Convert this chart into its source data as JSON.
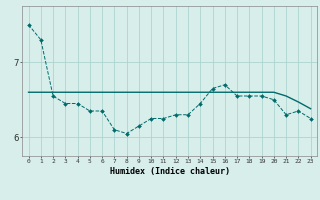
{
  "x": [
    0,
    1,
    2,
    3,
    4,
    5,
    6,
    7,
    8,
    9,
    10,
    11,
    12,
    13,
    14,
    15,
    16,
    17,
    18,
    19,
    20,
    21,
    22,
    23
  ],
  "line_main": [
    7.5,
    7.3,
    6.55,
    6.45,
    6.45,
    6.35,
    6.35,
    6.1,
    6.05,
    6.15,
    6.25,
    6.25,
    6.3,
    6.3,
    6.45,
    6.65,
    6.7,
    6.55,
    6.55,
    6.55,
    6.5,
    6.3,
    6.35,
    6.25
  ],
  "line_trend": [
    6.6,
    6.6,
    6.6,
    6.6,
    6.6,
    6.6,
    6.6,
    6.6,
    6.6,
    6.6,
    6.6,
    6.6,
    6.6,
    6.6,
    6.6,
    6.6,
    6.6,
    6.6,
    6.6,
    6.6,
    6.6,
    6.55,
    6.47,
    6.38
  ],
  "background_color": "#d7eeeb",
  "grid_color": "#aed4cf",
  "line_color": "#006b6b",
  "xlabel": "Humidex (Indice chaleur)",
  "yticks": [
    6,
    7
  ],
  "ylim": [
    5.75,
    7.75
  ],
  "xlim": [
    -0.5,
    23.5
  ]
}
